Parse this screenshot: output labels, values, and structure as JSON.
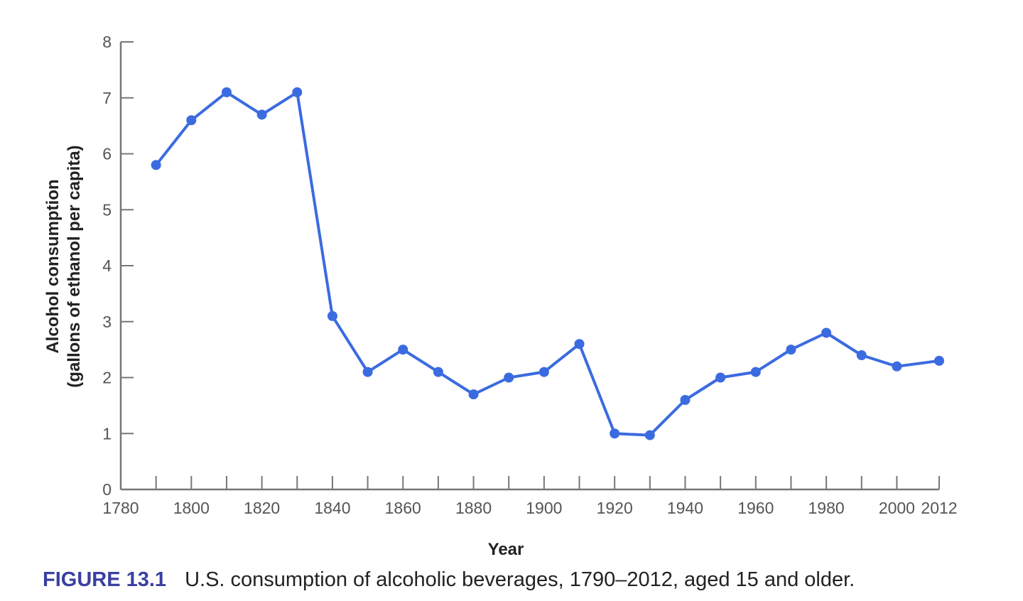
{
  "chart_data": {
    "type": "line",
    "title": "",
    "xlabel": "Year",
    "ylabel_line1": "Alcohol consumption",
    "ylabel_line2": "(gallons of ethanol per capita)",
    "xlim": [
      1780,
      2012
    ],
    "ylim": [
      0,
      8
    ],
    "x_ticks": [
      1780,
      1800,
      1820,
      1840,
      1860,
      1880,
      1900,
      1920,
      1940,
      1960,
      1980,
      2000,
      2012
    ],
    "x_minor_ticks": [
      1790,
      1800,
      1810,
      1820,
      1830,
      1840,
      1850,
      1860,
      1870,
      1880,
      1890,
      1900,
      1910,
      1920,
      1930,
      1940,
      1950,
      1960,
      1970,
      1980,
      1990,
      2000,
      2012
    ],
    "y_ticks": [
      0,
      1,
      2,
      3,
      4,
      5,
      6,
      7,
      8
    ],
    "grid": false,
    "line_color": "#3b6be0",
    "axis_color": "#777777",
    "series": [
      {
        "x": [
          1790,
          1800,
          1810,
          1820,
          1830,
          1840,
          1850,
          1860,
          1870,
          1880,
          1890,
          1900,
          1910,
          1920,
          1930,
          1940,
          1950,
          1960,
          1970,
          1980,
          1990,
          2000,
          2012
        ],
        "values": [
          5.8,
          6.6,
          7.1,
          6.7,
          7.1,
          3.1,
          2.1,
          2.5,
          2.1,
          1.7,
          2.0,
          2.1,
          2.6,
          1.0,
          0.97,
          1.6,
          2.0,
          2.1,
          2.5,
          2.8,
          2.4,
          2.2,
          2.3
        ]
      }
    ]
  },
  "caption": {
    "label": "FIGURE 13.1",
    "text": "U.S. consumption of alcoholic beverages, 1790–2012, aged 15 and older."
  }
}
